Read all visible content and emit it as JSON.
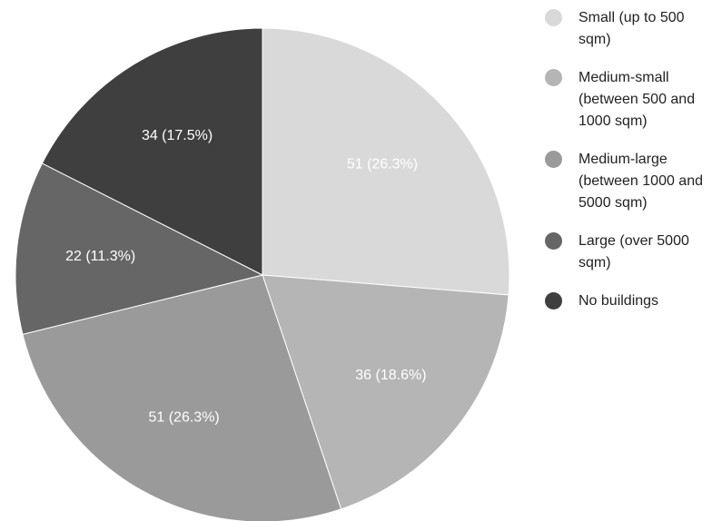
{
  "chart_data": {
    "type": "pie",
    "title": "",
    "legend_position": "right",
    "slices": [
      {
        "label": "Small (up to 500 sqm)",
        "value": 51,
        "percent": 26.3,
        "display": "51 (26.3%)",
        "color": "#d9d9d9"
      },
      {
        "label": "Medium-small (between 500 and 1000 sqm)",
        "value": 36,
        "percent": 18.6,
        "display": "36 (18.6%)",
        "color": "#b5b5b5"
      },
      {
        "label": "Medium-large (between 1000 and 5000 sqm)",
        "value": 51,
        "percent": 26.3,
        "display": "51 (26.3%)",
        "color": "#9a9a9a"
      },
      {
        "label": "Large (over 5000 sqm)",
        "value": 22,
        "percent": 11.3,
        "display": "22 (11.3%)",
        "color": "#666666"
      },
      {
        "label": "No buildings",
        "value": 34,
        "percent": 17.5,
        "display": "34 (17.5%)",
        "color": "#3f3f3f"
      }
    ]
  }
}
